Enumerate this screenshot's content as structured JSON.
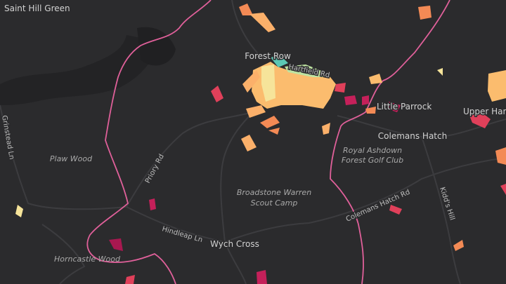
{
  "places": [
    {
      "label": "Saint Hill Green"
    },
    {
      "label": "Forest Row"
    },
    {
      "label": "Little Parrock"
    },
    {
      "label": "Upper Har"
    },
    {
      "label": "Colemans Hatch"
    },
    {
      "label": "Wych Cross"
    }
  ],
  "areas": [
    {
      "label": "Plaw Wood"
    },
    {
      "label": "Royal Ashdown"
    },
    {
      "label": "Forest Golf Club"
    },
    {
      "label": "Broadstone Warren"
    },
    {
      "label": "Scout Camp"
    },
    {
      "label": "Horncastle Wood"
    }
  ],
  "roads": [
    {
      "label": "Hartfield Rd"
    },
    {
      "label": "Grinstead Ln"
    },
    {
      "label": "Priory Rd"
    },
    {
      "label": "Colemans Hatch Rd"
    },
    {
      "label": "Kidd's Hill"
    },
    {
      "label": "Hindleap Ln"
    }
  ]
}
